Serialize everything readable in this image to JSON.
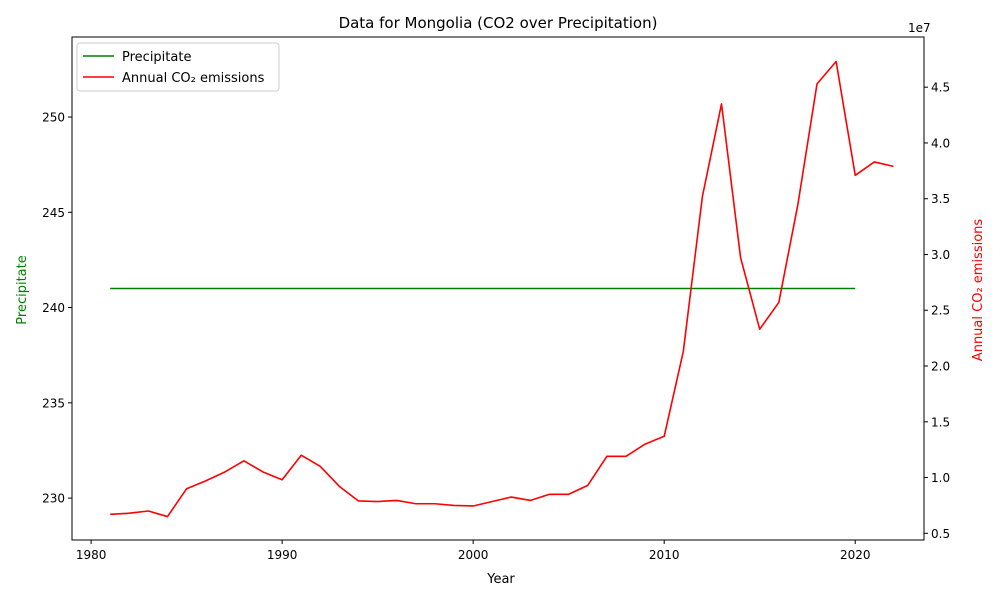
{
  "chart_data": {
    "type": "line",
    "title": "Data for Mongolia (CO2 over Precipitation)",
    "xlabel": "Year",
    "ylabel_left": "Precipitate",
    "ylabel_right": "Annual CO₂ emissions",
    "offset_text_right": "1e7",
    "xlim": [
      1979,
      2023.6
    ],
    "ylim_left": [
      227.8,
      254.2
    ],
    "ylim_right": [
      4400000,
      49500000
    ],
    "x_ticks": [
      1980,
      1990,
      2000,
      2010,
      2020
    ],
    "y_ticks_left": [
      230,
      235,
      240,
      245,
      250
    ],
    "y_ticks_right": [
      0.5,
      1.0,
      1.5,
      2.0,
      2.5,
      3.0,
      3.5,
      4.0,
      4.5
    ],
    "legend_position": "top-left",
    "colors": {
      "precip": "#008000",
      "co2": "#ff0000",
      "axis": "#000000"
    },
    "series": [
      {
        "name": "Precipitate",
        "axis": "left",
        "color": "#008000",
        "x": [
          1981,
          2020
        ],
        "values": [
          241,
          241
        ]
      },
      {
        "name": "Annual CO₂ emissions",
        "axis": "right",
        "color": "#ff0000",
        "x": [
          1981,
          1982,
          1983,
          1984,
          1985,
          1986,
          1987,
          1988,
          1989,
          1990,
          1991,
          1992,
          1993,
          1994,
          1995,
          1996,
          1997,
          1998,
          1999,
          2000,
          2001,
          2002,
          2003,
          2004,
          2005,
          2006,
          2007,
          2008,
          2009,
          2010,
          2011,
          2012,
          2013,
          2014,
          2015,
          2016,
          2017,
          2018,
          2019,
          2020,
          2021,
          2022
        ],
        "values": [
          6700000,
          6800000,
          7000000,
          6500000,
          9000000,
          9700000,
          10500000,
          11500000,
          10500000,
          9800000,
          12000000,
          11000000,
          9200000,
          7900000,
          7850000,
          7950000,
          7650000,
          7650000,
          7500000,
          7450000,
          7850000,
          8250000,
          7950000,
          8500000,
          8500000,
          9300000,
          11900000,
          11900000,
          13000000,
          13700000,
          21300000,
          35200000,
          43500000,
          29700000,
          23300000,
          25700000,
          34500000,
          45300000,
          47300000,
          37100000,
          38300000,
          37900000
        ]
      }
    ]
  }
}
